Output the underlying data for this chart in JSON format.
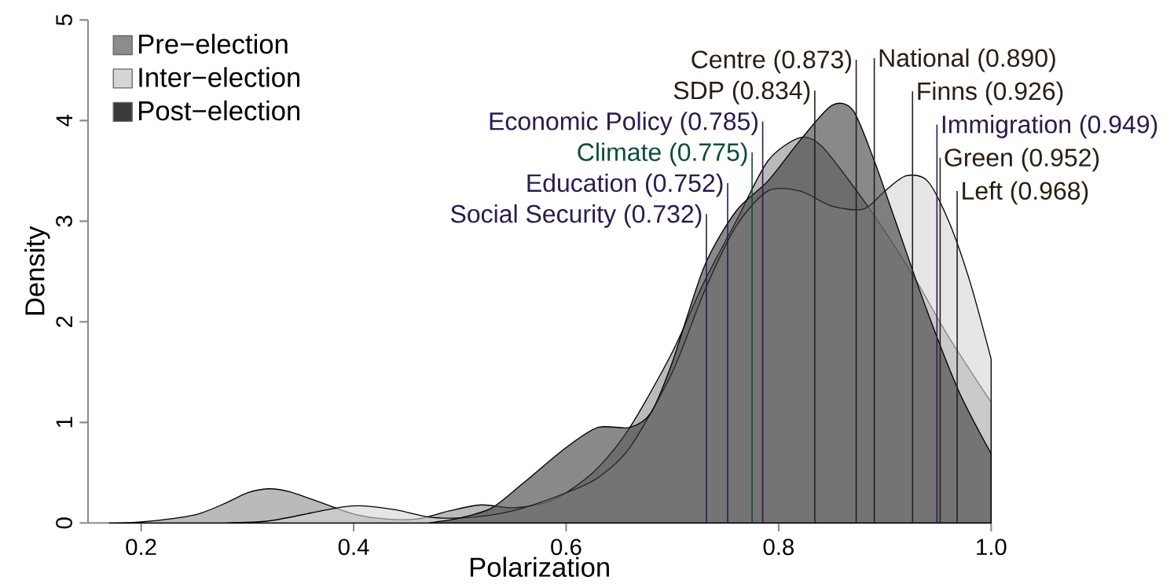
{
  "chart_data": {
    "type": "area",
    "xlabel": "Polarization",
    "ylabel": "Density",
    "xlim": [
      0.15,
      1.0
    ],
    "ylim": [
      0,
      5
    ],
    "xticks": [
      0.2,
      0.4,
      0.6,
      0.8,
      {
        "value": 1.0,
        "label": "1.0"
      }
    ],
    "yticks": [
      0,
      1,
      2,
      3,
      4,
      5
    ],
    "grid": false,
    "legend": "top left",
    "series": [
      {
        "name": "Pre−election",
        "color": "#8c8c8c",
        "x": [
          0.17,
          0.2,
          0.25,
          0.28,
          0.3,
          0.32,
          0.34,
          0.37,
          0.4,
          0.43,
          0.46,
          0.49,
          0.52,
          0.55,
          0.58,
          0.6,
          0.63,
          0.66,
          0.7,
          0.73,
          0.76,
          0.79,
          0.82,
          0.84,
          0.87,
          0.9,
          0.93,
          0.96,
          1.0
        ],
        "values": [
          0,
          0.01,
          0.08,
          0.2,
          0.3,
          0.34,
          0.31,
          0.2,
          0.09,
          0.04,
          0.04,
          0.12,
          0.18,
          0.15,
          0.2,
          0.3,
          0.55,
          0.95,
          1.7,
          2.4,
          3.0,
          3.6,
          3.83,
          3.75,
          3.35,
          2.9,
          2.4,
          1.85,
          1.2
        ]
      },
      {
        "name": "Inter−election",
        "color": "#d6d6d6",
        "x": [
          0.28,
          0.32,
          0.36,
          0.39,
          0.41,
          0.44,
          0.47,
          0.5,
          0.53,
          0.56,
          0.6,
          0.63,
          0.66,
          0.7,
          0.73,
          0.76,
          0.79,
          0.82,
          0.85,
          0.88,
          0.9,
          0.92,
          0.94,
          0.96,
          0.98,
          1.0
        ],
        "values": [
          0,
          0.02,
          0.1,
          0.16,
          0.17,
          0.13,
          0.06,
          0.05,
          0.08,
          0.15,
          0.3,
          0.45,
          0.75,
          1.5,
          2.3,
          2.95,
          3.3,
          3.3,
          3.15,
          3.12,
          3.3,
          3.45,
          3.4,
          3.0,
          2.4,
          1.63
        ]
      },
      {
        "name": "Post−election",
        "color": "#3a3a3a",
        "x": [
          0.47,
          0.5,
          0.53,
          0.56,
          0.6,
          0.63,
          0.66,
          0.68,
          0.7,
          0.73,
          0.76,
          0.79,
          0.82,
          0.85,
          0.87,
          0.89,
          0.91,
          0.94,
          0.97,
          1.0
        ],
        "values": [
          0,
          0.05,
          0.15,
          0.4,
          0.75,
          0.95,
          0.95,
          1.1,
          1.6,
          2.55,
          3.1,
          3.4,
          3.8,
          4.15,
          4.1,
          3.6,
          3.0,
          2.1,
          1.3,
          0.69
        ]
      }
    ],
    "ref_lines": [
      {
        "axis": "x",
        "value": 0.732,
        "label": "Social Security (0.732)",
        "color": "#2d1b4e"
      },
      {
        "axis": "x",
        "value": 0.752,
        "label": "Education (0.752)",
        "color": "#2d1b4e"
      },
      {
        "axis": "x",
        "value": 0.775,
        "label": "Climate (0.775)",
        "color": "#0b4d3c"
      },
      {
        "axis": "x",
        "value": 0.785,
        "label": "Economic Policy (0.785)",
        "color": "#2d1b4e"
      },
      {
        "axis": "x",
        "value": 0.834,
        "label": "SDP (0.834)",
        "color": "#2b1d14"
      },
      {
        "axis": "x",
        "value": 0.873,
        "label": "Centre (0.873)",
        "color": "#2b1d14"
      },
      {
        "axis": "x",
        "value": 0.89,
        "label": "National (0.890)",
        "color": "#2b1d14"
      },
      {
        "axis": "x",
        "value": 0.926,
        "label": "Finns (0.926)",
        "color": "#2b1d14"
      },
      {
        "axis": "x",
        "value": 0.949,
        "label": "Immigration (0.949)",
        "color": "#2d1b4e"
      },
      {
        "axis": "x",
        "value": 0.952,
        "label": "Green (0.952)",
        "color": "#2b1d14"
      },
      {
        "axis": "x",
        "value": 0.968,
        "label": "Left (0.968)",
        "color": "#2b1d14"
      }
    ]
  }
}
